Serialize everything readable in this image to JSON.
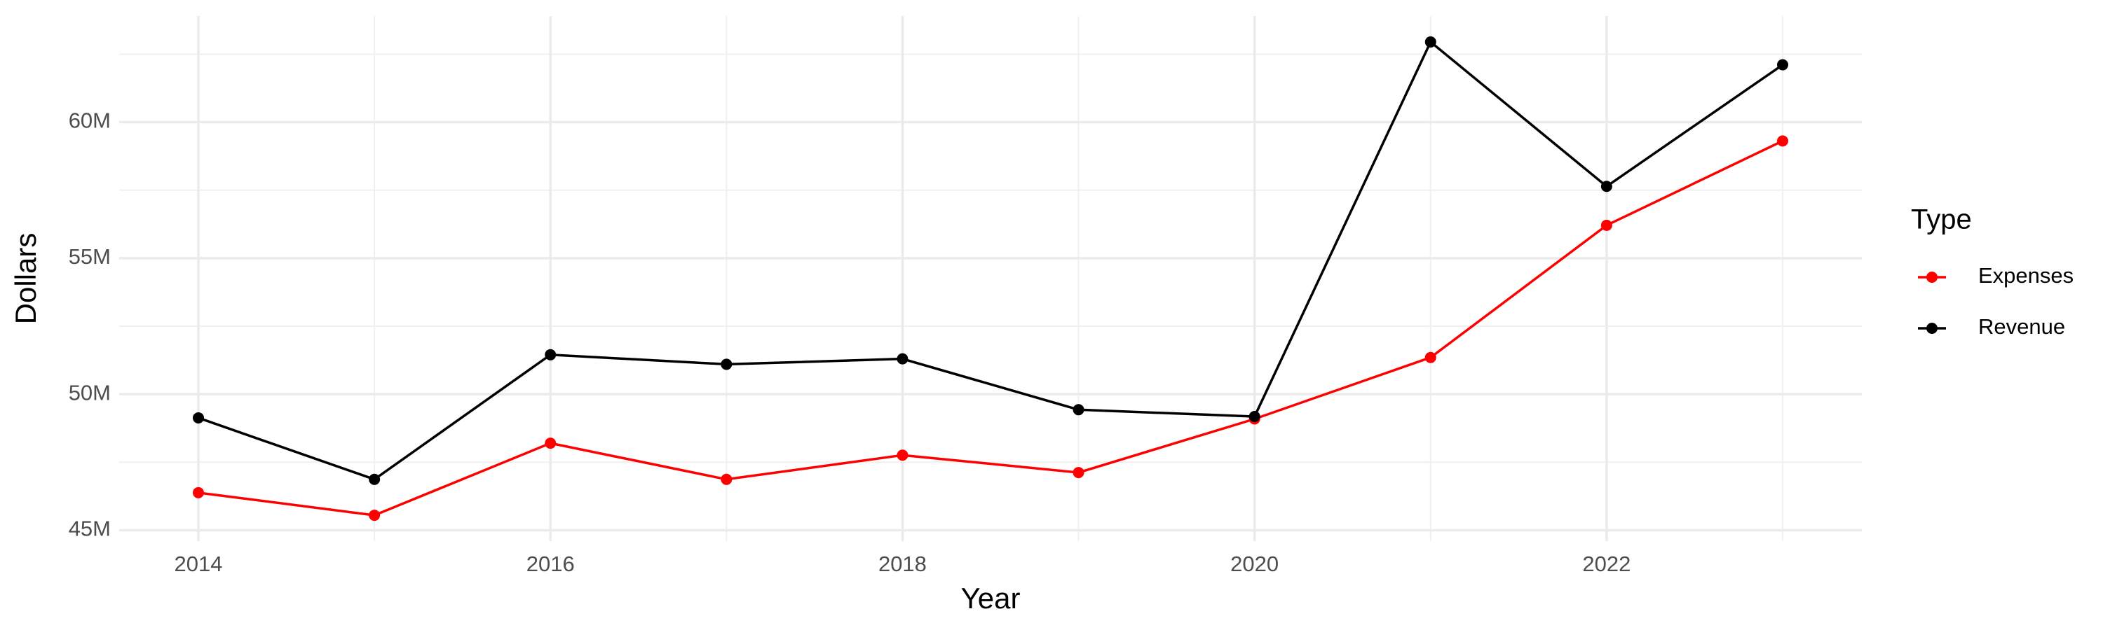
{
  "chart_data": {
    "type": "line",
    "x_label": "Year",
    "y_label": "Dollars",
    "legend_title": "Type",
    "legend": "right",
    "grid": true,
    "x": [
      2014,
      2015,
      2016,
      2017,
      2018,
      2019,
      2020,
      2021,
      2022,
      2023
    ],
    "series": [
      {
        "name": "Expenses",
        "color": "#ff0000",
        "values": [
          46380000,
          45550000,
          48200000,
          46870000,
          47760000,
          47120000,
          49090000,
          51350000,
          56210000,
          59310000
        ]
      },
      {
        "name": "Revenue",
        "color": "#000000",
        "values": [
          49130000,
          46870000,
          51450000,
          51100000,
          51300000,
          49430000,
          49180000,
          62950000,
          57640000,
          62110000
        ]
      }
    ],
    "xlim": [
      2013.55,
      2023.45
    ],
    "xticks": [
      2014,
      2016,
      2018,
      2020,
      2022
    ],
    "ylim": [
      44600000,
      63900000
    ],
    "yticks": [
      {
        "value": 45000000,
        "label": "45M"
      },
      {
        "value": 50000000,
        "label": "50M"
      },
      {
        "value": 55000000,
        "label": "55M"
      },
      {
        "value": 60000000,
        "label": "60M"
      }
    ]
  }
}
